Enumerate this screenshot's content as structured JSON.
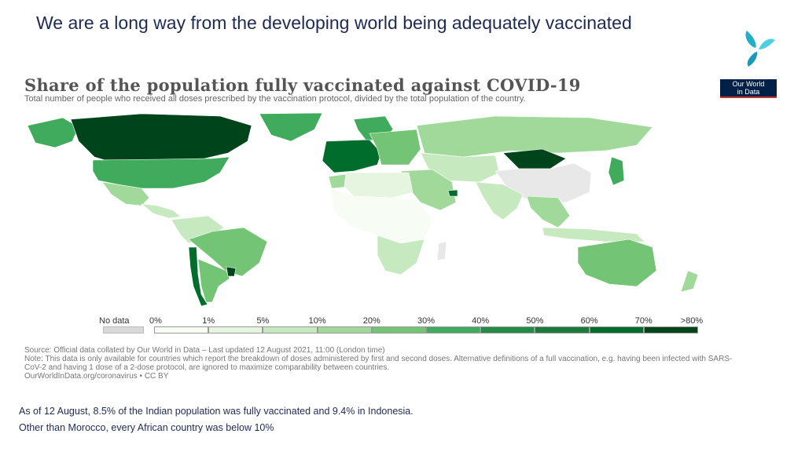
{
  "slide": {
    "title": "We are a long way from the developing world being adequately vaccinated",
    "footnote_1": "As of 12 August, 8.5% of the Indian population was fully vaccinated and 9.4% in Indonesia.",
    "footnote_2": "Other than Morocco, every African country was below 10%"
  },
  "logos": {
    "brand_icon": "tri-petal-logo",
    "owid_line1": "Our World",
    "owid_line2": "in Data"
  },
  "map": {
    "title": "Share of the population fully vaccinated against COVID-19",
    "subtitle": "Total number of people who received all doses prescribed by the vaccination protocol, divided by the total population of the country.",
    "no_data_label": "No data",
    "legend": {
      "ticks": [
        "0%",
        "1%",
        "5%",
        "10%",
        "20%",
        "30%",
        "40%",
        "50%",
        "60%",
        "70%",
        ">80%"
      ],
      "colors": [
        "#f7fcf5",
        "#e5f5e0",
        "#c7e9c0",
        "#a1d99b",
        "#74c476",
        "#41ab5d",
        "#238b45",
        "#1a7a3a",
        "#006d2c",
        "#00441b"
      ],
      "no_data_color": "#d9d9d9"
    },
    "regions": {
      "canada": "#00441b",
      "usa": "#41ab5d",
      "alaska": "#41ab5d",
      "greenland": "#41ab5d",
      "mexico": "#a1d99b",
      "central_america": "#c7e9c0",
      "south_america_north": "#c7e9c0",
      "brazil": "#74c476",
      "chile": "#006d2c",
      "argentina": "#74c476",
      "uruguay": "#00441b",
      "europe_west": "#006d2c",
      "europe_east": "#74c476",
      "scandinavia": "#41ab5d",
      "russia": "#a1d99b",
      "north_africa": "#e5f5e0",
      "morocco": "#a1d99b",
      "sub_saharan_africa": "#f7fcf5",
      "southern_africa": "#c7e9c0",
      "middle_east": "#a1d99b",
      "uae": "#006d2c",
      "central_asia": "#c7e9c0",
      "mongolia": "#00441b",
      "china": "#e8e8e8",
      "india": "#c7e9c0",
      "southeast_asia": "#a1d99b",
      "japan": "#41ab5d",
      "indonesia": "#c7e9c0",
      "australia": "#74c476",
      "new_zealand": "#a1d99b",
      "madagascar": "#e8e8e8"
    }
  },
  "source": {
    "line1": "Source: Official data collated by Our World in Data – Last updated 12 August 2021, 11:00 (London time)",
    "line2": "Note: This data is only available for countries which report the breakdown of doses administered by first and second doses. Alternative definitions of a full vaccination, e.g. having been infected with SARS-CoV-2 and having 1 dose of a 2-dose protocol, are ignored to maximize comparability between countries.",
    "line3": "OurWorldInData.org/coronavirus • CC BY"
  }
}
